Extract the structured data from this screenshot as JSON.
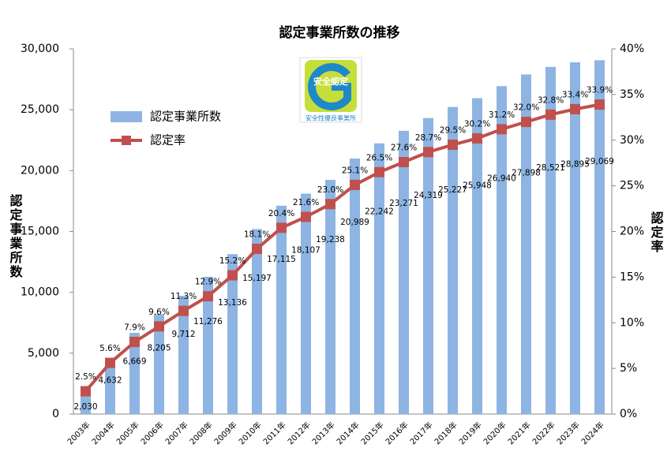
{
  "chart_data": {
    "type": "bar",
    "title": "認定事業所数の推移",
    "y_label": "認定事業所数",
    "y2_label": "認定率",
    "logo": {
      "top_text": "安全認定",
      "bottom_text": "安全性優良事業所"
    },
    "categories": [
      "2003年",
      "2004年",
      "2005年",
      "2006年",
      "2007年",
      "2008年",
      "2009年",
      "2010年",
      "2011年",
      "2012年",
      "2013年",
      "2014年",
      "2015年",
      "2016年",
      "2017年",
      "2018年",
      "2019年",
      "2020年",
      "2021年",
      "2022年",
      "2023年",
      "2024年"
    ],
    "series": [
      {
        "name": "認定事業所数",
        "type": "bar",
        "color": "#8db4e2",
        "values": [
          2030,
          4632,
          6669,
          8205,
          9712,
          11276,
          13136,
          15197,
          17115,
          18107,
          19238,
          20989,
          22242,
          23271,
          24319,
          25227,
          25948,
          26940,
          27898,
          28521,
          28895,
          29069
        ],
        "value_labels": [
          "2,030",
          "4,632",
          "6,669",
          "8,205",
          "9,712",
          "11,276",
          "13,136",
          "15,197",
          "17,115",
          "18,107",
          "19,238",
          "20,989",
          "22,242",
          "23,271",
          "24,319",
          "25,227",
          "25,948",
          "26,940",
          "27,898",
          "28,521",
          "28,895",
          "29,069"
        ]
      },
      {
        "name": "認定率",
        "type": "line",
        "axis": "y2",
        "color": "#c0504d",
        "values": [
          2.5,
          5.6,
          7.9,
          9.6,
          11.3,
          12.9,
          15.2,
          18.1,
          20.4,
          21.6,
          23.0,
          25.1,
          26.5,
          27.6,
          28.7,
          29.5,
          30.2,
          31.2,
          32.0,
          32.8,
          33.4,
          33.9
        ],
        "value_labels": [
          "2.5%",
          "5.6%",
          "7.9%",
          "9.6%",
          "11.3%",
          "12.9%",
          "15.2%",
          "18.1%",
          "20.4%",
          "21.6%",
          "23.0%",
          "25.1%",
          "26.5%",
          "27.6%",
          "28.7%",
          "29.5%",
          "30.2%",
          "31.2%",
          "32.0%",
          "32.8%",
          "33.4%",
          "33.9%"
        ]
      }
    ],
    "ylim": [
      0,
      30000
    ],
    "yticks": [
      0,
      {
        "value": 5000,
        "label": "5,000"
      },
      {
        "value": 10000,
        "label": "10,000"
      },
      {
        "value": 15000,
        "label": "15,000"
      },
      {
        "value": 20000,
        "label": "20,000"
      },
      {
        "value": 25000,
        "label": "25,000"
      },
      {
        "value": 30000,
        "label": "30,000"
      }
    ],
    "y2lim": [
      0,
      40
    ],
    "y2ticks": [
      {
        "value": 0,
        "label": "0%"
      },
      {
        "value": 5,
        "label": "5%"
      },
      {
        "value": 10,
        "label": "10%"
      },
      {
        "value": 15,
        "label": "15%"
      },
      {
        "value": 20,
        "label": "20%"
      },
      {
        "value": 25,
        "label": "25%"
      },
      {
        "value": 30,
        "label": "30%"
      },
      {
        "value": 35,
        "label": "35%"
      },
      {
        "value": 40,
        "label": "40%"
      }
    ],
    "grid": false,
    "legend": "upper left"
  }
}
